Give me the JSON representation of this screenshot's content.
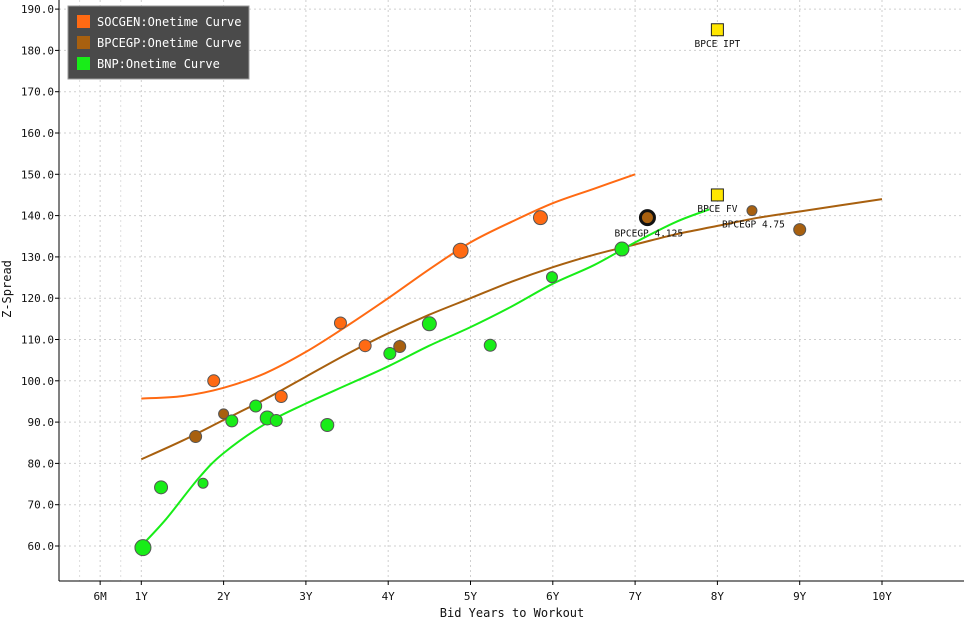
{
  "chart_data": {
    "type": "scatter",
    "xlabel": "Bid Years to Workout",
    "ylabel": "Z-Spread",
    "xlim": [
      0,
      10.5
    ],
    "ylim": [
      52,
      192
    ],
    "grid": true,
    "legend_position": "top-left",
    "x_ticks": [
      {
        "value": 0.5,
        "label": "6M"
      },
      {
        "value": 1,
        "label": "1Y"
      },
      {
        "value": 2,
        "label": "2Y"
      },
      {
        "value": 3,
        "label": "3Y"
      },
      {
        "value": 4,
        "label": "4Y"
      },
      {
        "value": 5,
        "label": "5Y"
      },
      {
        "value": 6,
        "label": "6Y"
      },
      {
        "value": 7,
        "label": "7Y"
      },
      {
        "value": 8,
        "label": "8Y"
      },
      {
        "value": 9,
        "label": "9Y"
      },
      {
        "value": 10,
        "label": "10Y"
      }
    ],
    "y_ticks": [
      {
        "value": 60,
        "label": "60.0"
      },
      {
        "value": 70,
        "label": "70.0"
      },
      {
        "value": 80,
        "label": "80.0"
      },
      {
        "value": 90,
        "label": "90.0"
      },
      {
        "value": 100,
        "label": "100.0"
      },
      {
        "value": 110,
        "label": "110.0"
      },
      {
        "value": 120,
        "label": "120.0"
      },
      {
        "value": 130,
        "label": "130.0"
      },
      {
        "value": 140,
        "label": "140.0"
      },
      {
        "value": 150,
        "label": "150.0"
      },
      {
        "value": 160,
        "label": "160.0"
      },
      {
        "value": 170,
        "label": "170.0"
      },
      {
        "value": 180,
        "label": "180.0"
      },
      {
        "value": 190,
        "label": "190.0"
      }
    ],
    "series": [
      {
        "name": "SOCGEN:Onetime Curve",
        "color": "#ff6a13",
        "curve": [
          [
            1,
            95.7
          ],
          [
            1.5,
            96.3
          ],
          [
            2,
            98.3
          ],
          [
            2.5,
            101.8
          ],
          [
            3,
            107
          ],
          [
            3.5,
            113.3
          ],
          [
            4,
            120
          ],
          [
            4.5,
            127
          ],
          [
            5,
            133.5
          ],
          [
            5.5,
            138.5
          ],
          [
            6,
            143
          ],
          [
            6.5,
            146.5
          ],
          [
            7,
            150
          ]
        ],
        "points": [
          {
            "x": 1.88,
            "y": 100,
            "size": 6
          },
          {
            "x": 2.7,
            "y": 96.2,
            "size": 6
          },
          {
            "x": 3.42,
            "y": 114,
            "size": 6
          },
          {
            "x": 3.72,
            "y": 108.5,
            "size": 6
          },
          {
            "x": 4.88,
            "y": 131.5,
            "size": 7.5
          },
          {
            "x": 5.85,
            "y": 139.5,
            "size": 7
          }
        ]
      },
      {
        "name": "BPCEGP:Onetime Curve",
        "color": "#a8600f",
        "curve": [
          [
            1,
            81
          ],
          [
            1.5,
            85.5
          ],
          [
            2,
            90.5
          ],
          [
            2.5,
            95.5
          ],
          [
            3,
            101
          ],
          [
            3.5,
            106.5
          ],
          [
            4,
            111.5
          ],
          [
            4.5,
            116
          ],
          [
            5,
            120
          ],
          [
            5.5,
            124
          ],
          [
            6,
            127.5
          ],
          [
            6.5,
            130.5
          ],
          [
            7,
            133
          ],
          [
            7.5,
            135.5
          ],
          [
            8,
            137.5
          ],
          [
            8.5,
            139.5
          ],
          [
            9,
            141
          ],
          [
            9.5,
            142.5
          ],
          [
            10,
            144
          ]
        ],
        "points": [
          {
            "x": 1.66,
            "y": 86.5,
            "size": 6
          },
          {
            "x": 2,
            "y": 92,
            "size": 5
          },
          {
            "x": 4.14,
            "y": 108.3,
            "size": 6
          },
          {
            "x": 8.42,
            "y": 141.2,
            "size": 5
          },
          {
            "x": 9,
            "y": 136.6,
            "size": 6
          }
        ]
      },
      {
        "name": "BNP:Onetime Curve",
        "color": "#18ed18",
        "curve": [
          [
            1,
            60
          ],
          [
            1.3,
            66.5
          ],
          [
            1.7,
            76.5
          ],
          [
            2,
            82.5
          ],
          [
            2.5,
            89.5
          ],
          [
            3,
            94.5
          ],
          [
            3.5,
            99
          ],
          [
            4,
            103.5
          ],
          [
            4.5,
            108.5
          ],
          [
            5,
            113
          ],
          [
            5.5,
            118
          ],
          [
            6,
            123.5
          ],
          [
            6.5,
            128
          ],
          [
            7,
            133.5
          ],
          [
            7.5,
            138.5
          ],
          [
            7.9,
            141.5
          ]
        ],
        "points": [
          {
            "x": 1.02,
            "y": 59.6,
            "size": 8
          },
          {
            "x": 1.24,
            "y": 74.2,
            "size": 6.5
          },
          {
            "x": 1.75,
            "y": 75.2,
            "size": 5
          },
          {
            "x": 2.1,
            "y": 90.3,
            "size": 6
          },
          {
            "x": 2.39,
            "y": 93.9,
            "size": 6
          },
          {
            "x": 2.53,
            "y": 91,
            "size": 7
          },
          {
            "x": 2.64,
            "y": 90.4,
            "size": 6
          },
          {
            "x": 3.26,
            "y": 89.3,
            "size": 6.5
          },
          {
            "x": 4.02,
            "y": 106.6,
            "size": 6
          },
          {
            "x": 4.5,
            "y": 113.8,
            "size": 7
          },
          {
            "x": 5.24,
            "y": 108.6,
            "size": 6
          },
          {
            "x": 5.99,
            "y": 125.1,
            "size": 5.5
          },
          {
            "x": 6.84,
            "y": 131.9,
            "size": 7
          }
        ]
      }
    ],
    "highlight_point": {
      "x": 7.15,
      "y": 139.5
    },
    "markers": [
      {
        "label": "BPCE IPT",
        "x": 8,
        "y": 185,
        "color": "#ffe600"
      },
      {
        "label": "BPCE FV",
        "x": 8,
        "y": 145,
        "color": "#ffe600"
      }
    ],
    "annotations": [
      {
        "label": "BPCEGP 4.125",
        "x": 7.15,
        "y": 139.5,
        "anchor": "start",
        "dx": -33,
        "dy": 19
      },
      {
        "label": "BPCEGP 4.75",
        "x": 8.42,
        "y": 141.2,
        "anchor": "start",
        "dx": -30,
        "dy": 17
      }
    ]
  }
}
